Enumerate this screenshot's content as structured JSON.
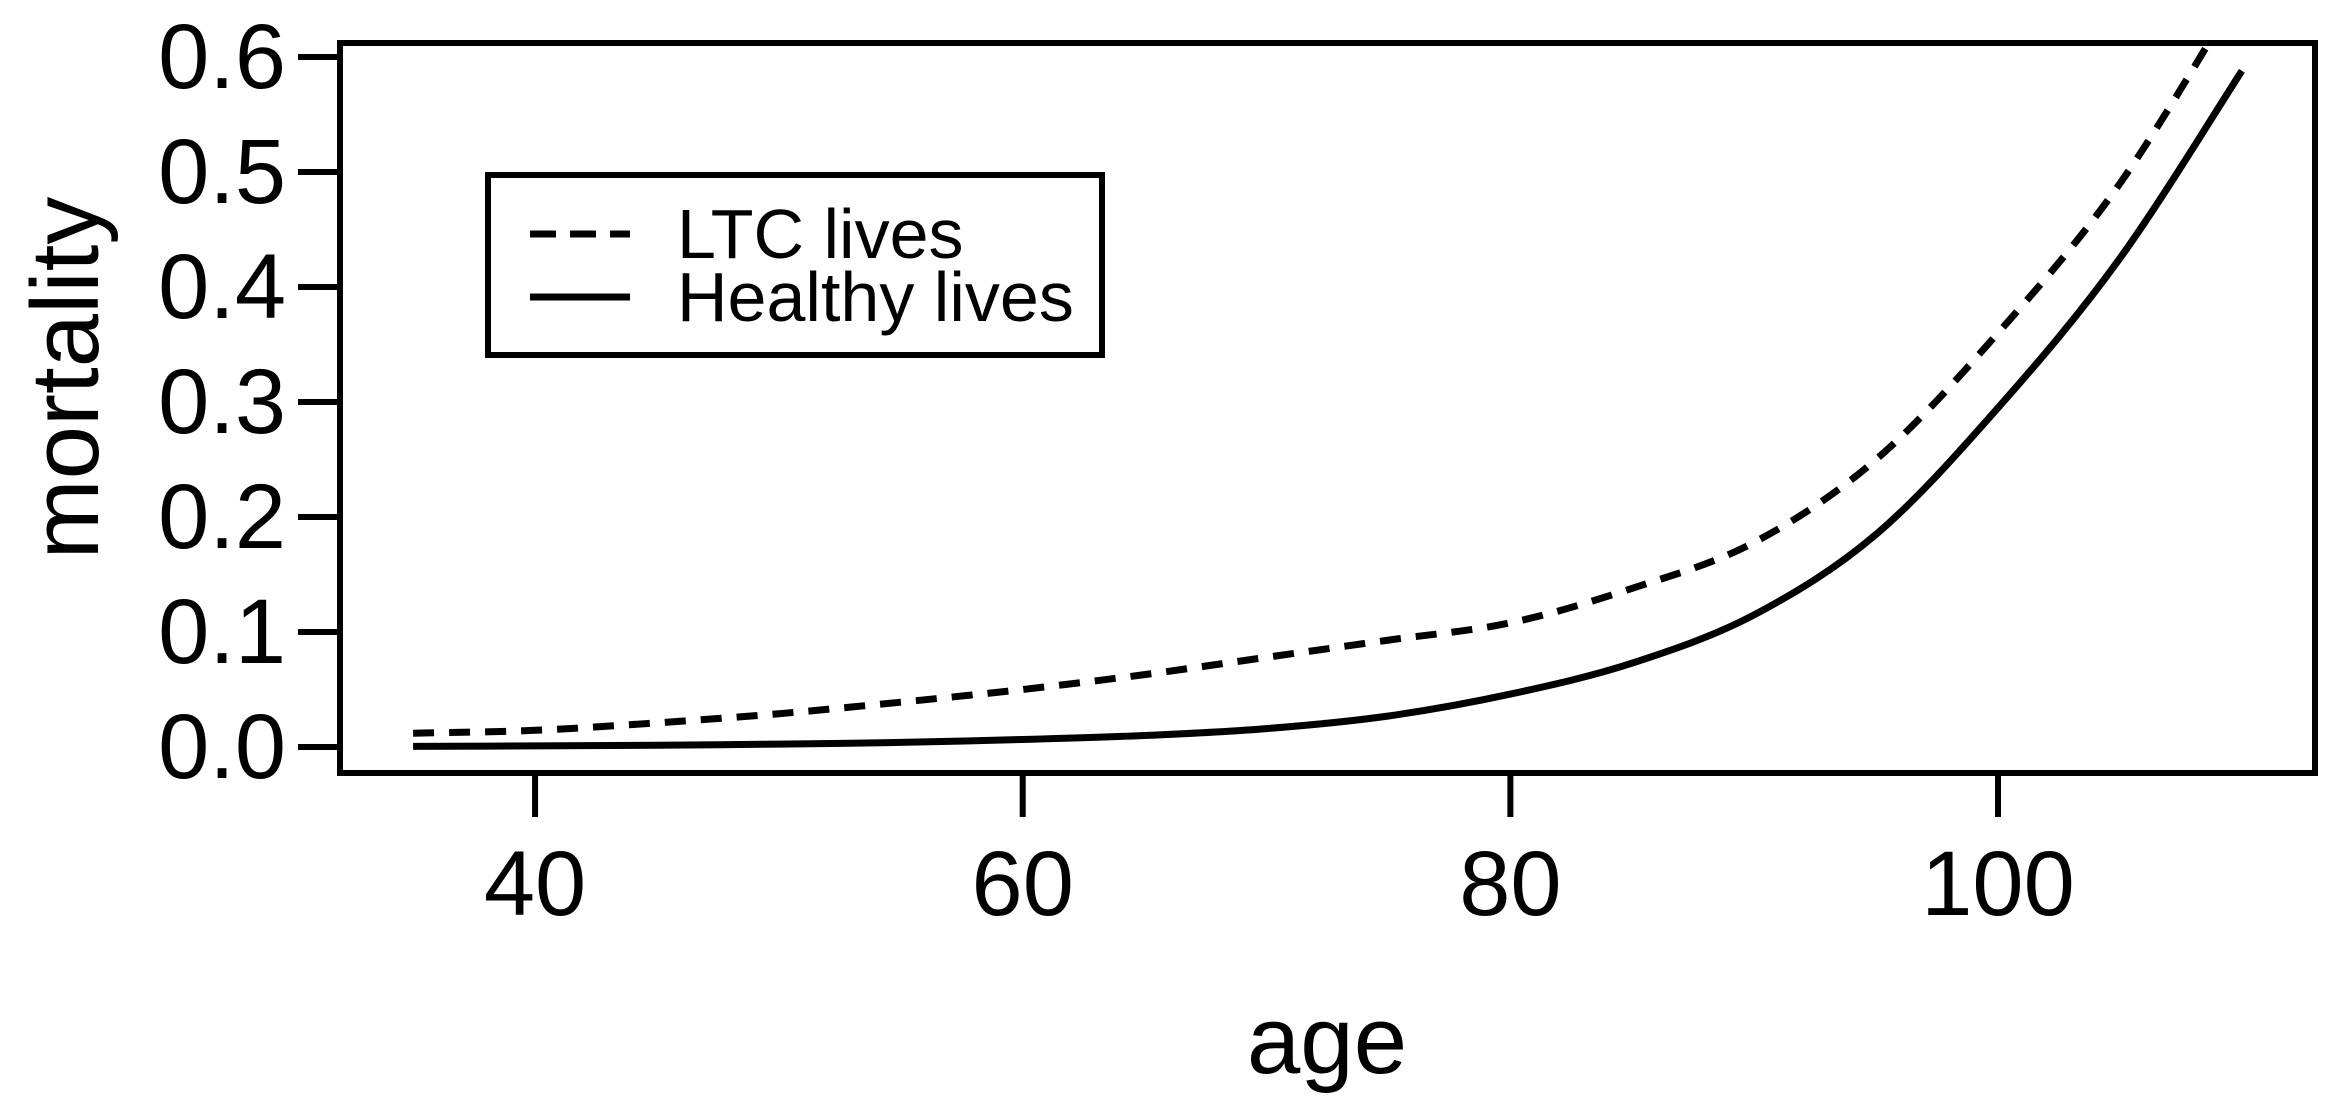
{
  "figure": {
    "background_color": "#ffffff",
    "foreground_color": "#000000",
    "xlabel": "age",
    "ylabel": "mortality",
    "legend": {
      "items": [
        {
          "label": "LTC lives",
          "line_style": "dashed"
        },
        {
          "label": "Healthy lives",
          "line_style": "solid"
        }
      ]
    }
  },
  "chart_data": {
    "type": "line",
    "title": "",
    "xlabel": "age",
    "ylabel": "mortality",
    "xlim": [
      32,
      113
    ],
    "ylim": [
      -0.0226,
      0.6122
    ],
    "grid": false,
    "legend_position": "upper-left-inside",
    "x_ticks": [
      {
        "value": 40,
        "label": "40"
      },
      {
        "value": 60,
        "label": "60"
      },
      {
        "value": 80,
        "label": "80"
      },
      {
        "value": 100,
        "label": "100"
      }
    ],
    "y_ticks": [
      {
        "value": 0.0,
        "label": "0.0"
      },
      {
        "value": 0.1,
        "label": "0.1"
      },
      {
        "value": 0.2,
        "label": "0.2"
      },
      {
        "value": 0.3,
        "label": "0.3"
      },
      {
        "value": 0.4,
        "label": "0.4"
      },
      {
        "value": 0.5,
        "label": "0.5"
      },
      {
        "value": 0.6,
        "label": "0.6"
      }
    ],
    "x": [
      35,
      40,
      45,
      50,
      55,
      60,
      65,
      70,
      75,
      80,
      85,
      90,
      95,
      100,
      105,
      110
    ],
    "series": [
      {
        "name": "LTC lives",
        "line_style": "dashed",
        "color": "#000000",
        "values": [
          0.012,
          0.0145,
          0.021,
          0.029,
          0.039,
          0.05,
          0.063,
          0.078,
          0.093,
          0.108,
          0.138,
          0.178,
          0.25,
          0.36,
          0.49,
          0.66
        ]
      },
      {
        "name": "Healthy lives",
        "line_style": "solid",
        "color": "#000000",
        "values": [
          0.0005,
          0.001,
          0.0015,
          0.0025,
          0.004,
          0.0065,
          0.01,
          0.016,
          0.027,
          0.046,
          0.073,
          0.115,
          0.185,
          0.295,
          0.425,
          0.588
        ]
      }
    ]
  }
}
